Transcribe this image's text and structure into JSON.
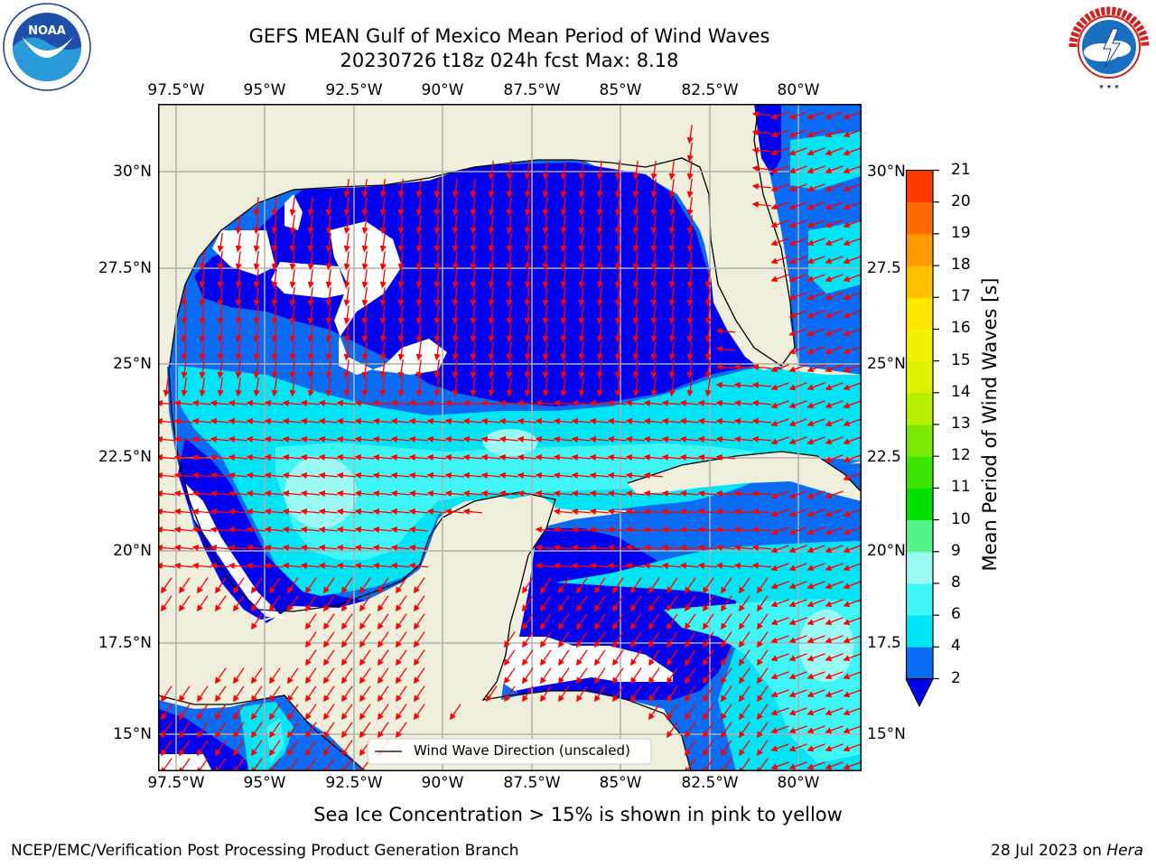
{
  "title": {
    "line1": "GEFS MEAN Gulf of Mexico Mean Period of Wind Waves",
    "line2": "20230726 t18z 024h fcst   Max: 8.18"
  },
  "map": {
    "lon_labels": [
      "97.5°W",
      "95°W",
      "92.5°W",
      "90°W",
      "87.5°W",
      "85°W",
      "82.5°W",
      "80°W"
    ],
    "lat_labels_left": [
      "30°N",
      "27.5°N",
      "25°N",
      "22.5°N",
      "20°N",
      "17.5°N",
      "15°N"
    ],
    "lat_labels_right": [
      "30°N",
      "27.5",
      "25°N",
      "22.5",
      "20°N",
      "17.5",
      "15°N"
    ],
    "land_color": "#efefdc",
    "legend_label": "Wind Wave Direction (unscaled)",
    "arrow_color": "#ff0000"
  },
  "colorbar": {
    "title": "Mean Period of Wind Waves [s]",
    "ticks": [
      "2",
      "4",
      "6",
      "8",
      "9",
      "10",
      "11",
      "12",
      "13",
      "14",
      "15",
      "16",
      "17",
      "18",
      "19",
      "20",
      "21"
    ],
    "colors": [
      "#0a6cf4",
      "#00e5f5",
      "#40f5f5",
      "#9cfaf5",
      "#55f58c",
      "#00e000",
      "#3de600",
      "#7ae800",
      "#b8ee00",
      "#dff200",
      "#f2f200",
      "#ffe600",
      "#ffc000",
      "#ff9a00",
      "#ff6a00",
      "#ff3a00",
      "#ff0000"
    ],
    "extend_color": "#0000f0"
  },
  "subtitle": "Sea Ice Concentration > 15% is shown in pink to yellow",
  "footer": {
    "left": "NCEP/EMC/Verification Post Processing Product Generation Branch",
    "date": "28 Jul 2023 on ",
    "machine": "Hera"
  },
  "logos": {
    "noaa": "NOAA",
    "noaa_ring": "NATIONAL OCEANIC AND ATMOSPHERIC ADMINISTRATION · U.S. DEPARTMENT OF COMMERCE",
    "nws_ring": "NATIONAL WEATHER SERVICE"
  }
}
